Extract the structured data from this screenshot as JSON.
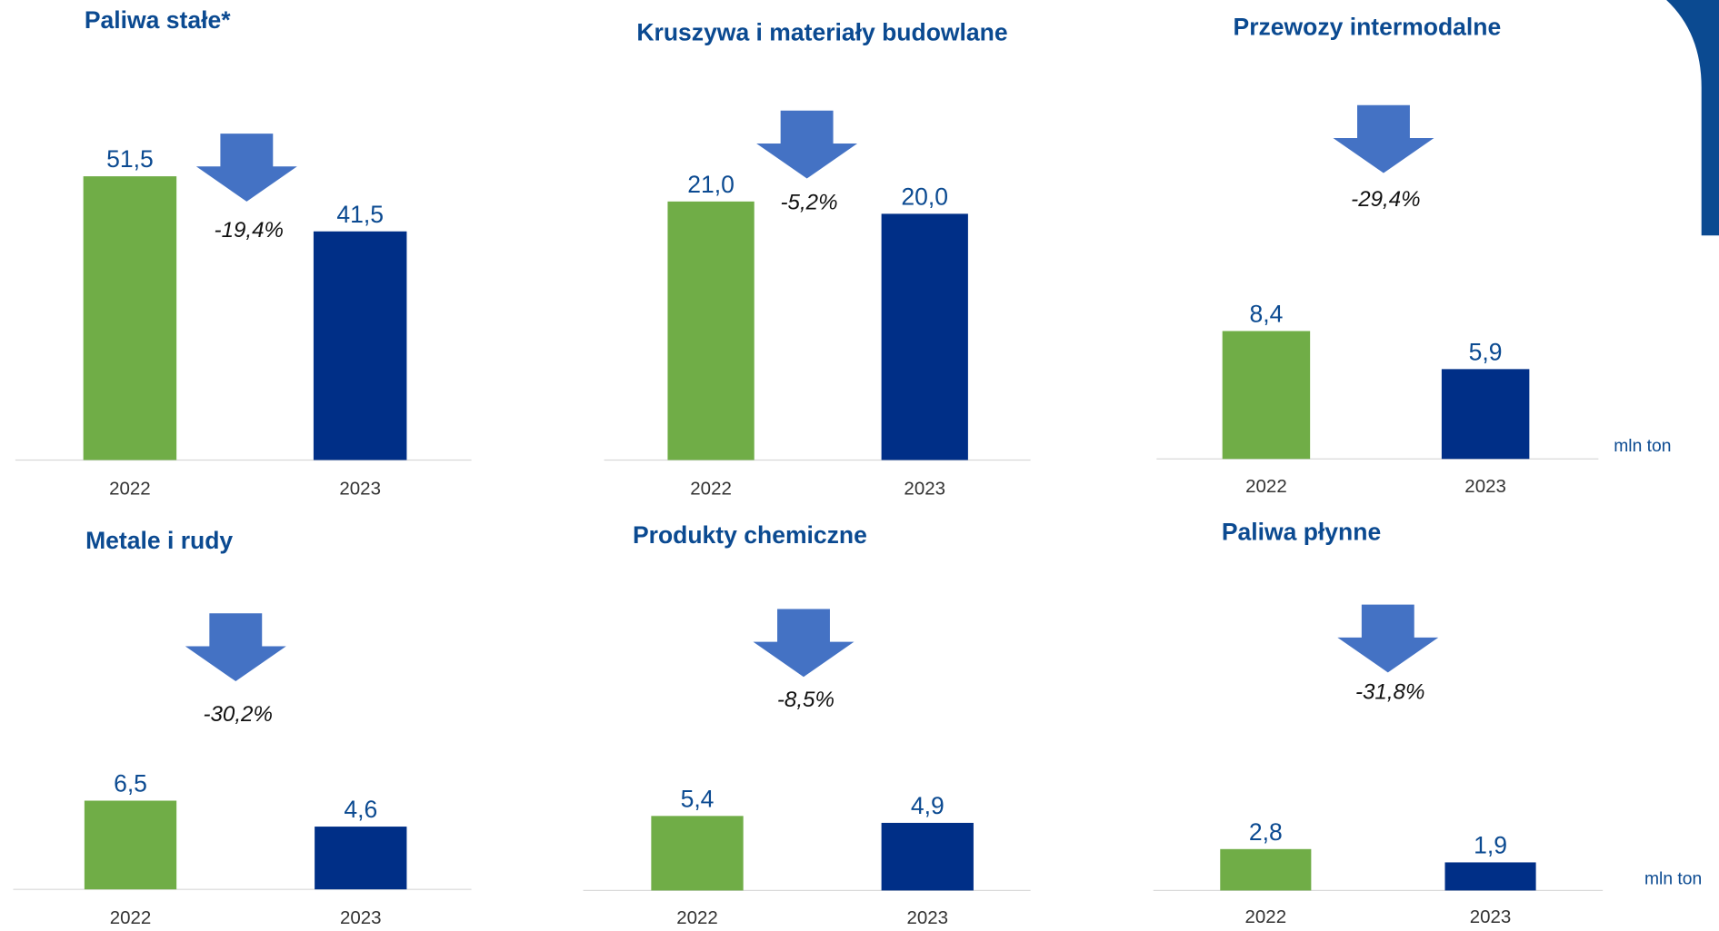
{
  "charts": [
    {
      "chart_data": {
        "type": "bar",
        "title": "Paliwa stałe*",
        "categories": [
          "2022",
          "2023"
        ],
        "values": [
          51.5,
          41.5
        ],
        "value_labels": [
          "51,5",
          "41,5"
        ],
        "colors": [
          "#70ad47",
          "#002f87"
        ],
        "annotation": "-19,4%"
      }
    },
    {
      "chart_data": {
        "type": "bar",
        "title": "Kruszywa i materiały budowlane",
        "categories": [
          "2022",
          "2023"
        ],
        "values": [
          21.0,
          20.0
        ],
        "value_labels": [
          "21,0",
          "20,0"
        ],
        "colors": [
          "#70ad47",
          "#002f87"
        ],
        "annotation": "-5,2%"
      }
    },
    {
      "chart_data": {
        "type": "bar",
        "title": "Przewozy intermodalne",
        "categories": [
          "2022",
          "2023"
        ],
        "values": [
          8.4,
          5.9
        ],
        "value_labels": [
          "8,4",
          "5,9"
        ],
        "colors": [
          "#70ad47",
          "#002f87"
        ],
        "annotation": "-29,4%",
        "unit": "mln ton"
      }
    },
    {
      "chart_data": {
        "type": "bar",
        "title": "Metale i rudy",
        "categories": [
          "2022",
          "2023"
        ],
        "values": [
          6.5,
          4.6
        ],
        "value_labels": [
          "6,5",
          "4,6"
        ],
        "colors": [
          "#70ad47",
          "#002f87"
        ],
        "annotation": "-30,2%"
      }
    },
    {
      "chart_data": {
        "type": "bar",
        "title": "Produkty chemiczne",
        "categories": [
          "2022",
          "2023"
        ],
        "values": [
          5.4,
          4.9
        ],
        "value_labels": [
          "5,4",
          "4,9"
        ],
        "colors": [
          "#70ad47",
          "#002f87"
        ],
        "annotation": "-8,5%"
      }
    },
    {
      "chart_data": {
        "type": "bar",
        "title": "Paliwa płynne",
        "categories": [
          "2022",
          "2023"
        ],
        "values": [
          2.8,
          1.9
        ],
        "value_labels": [
          "2,8",
          "1,9"
        ],
        "colors": [
          "#70ad47",
          "#002f87"
        ],
        "annotation": "-31,8%",
        "unit": "mln ton"
      }
    }
  ]
}
